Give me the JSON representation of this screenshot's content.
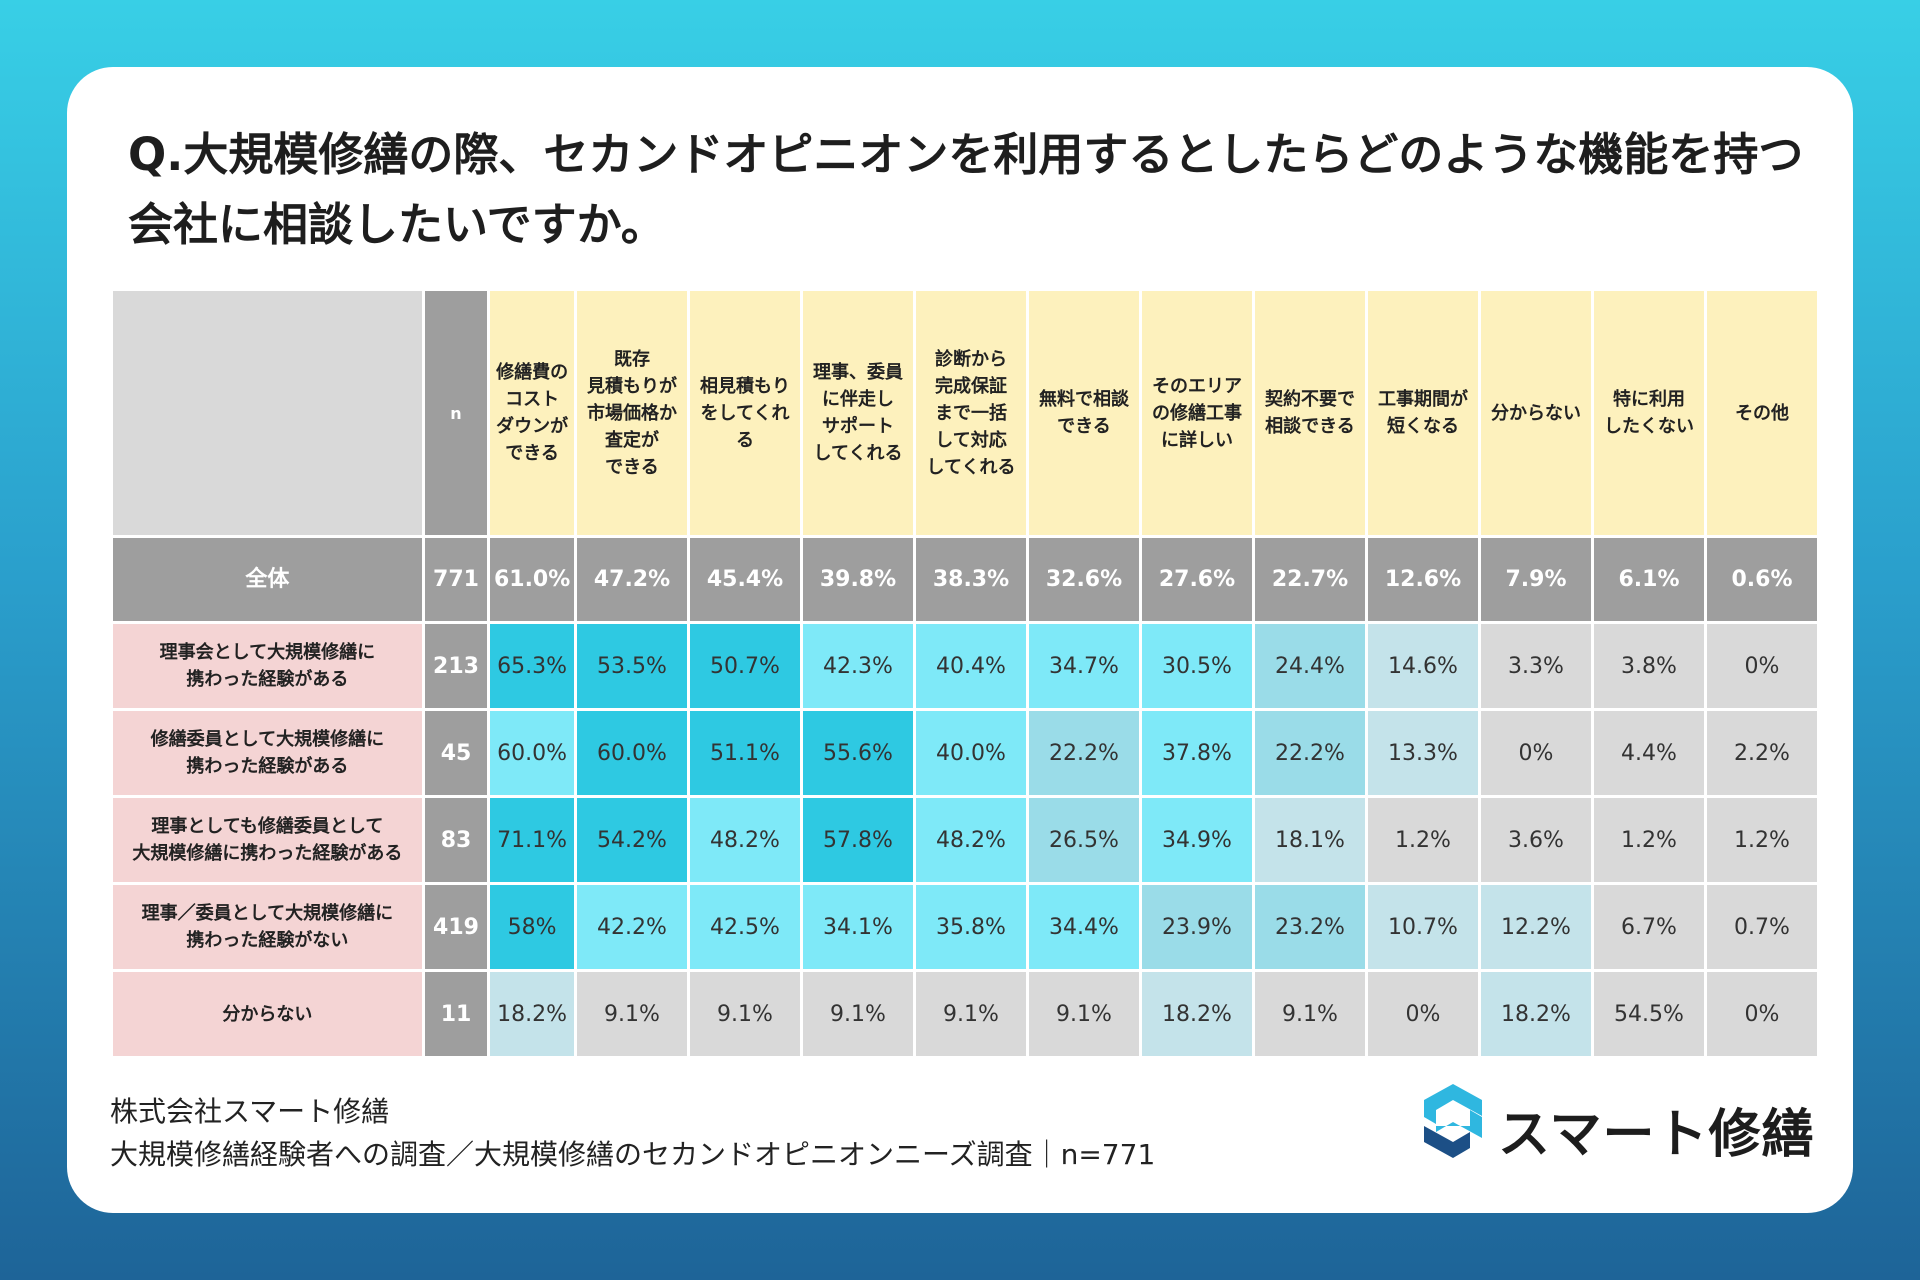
{
  "question": "Q.大規模修繕の際、セカンドオピニオンを利用するとしたらどのような機能を持つ会社に相談したいですか。",
  "header_n": "n",
  "colors": {
    "header_bg": "#fdf1bd",
    "grey": "#9e9e9e",
    "row_label_bg": "#f4d4d4"
  },
  "chart_data": {
    "type": "table",
    "title": "Q.大規模修繕の際、セカンドオピニオンを利用するとしたらどのような機能を持つ会社に相談したいですか。",
    "columns": [
      {
        "label": "修繕費の\nコスト\nダウンが\nできる"
      },
      {
        "label": "既存\n見積もりが\n市場価格か\n査定が\nできる"
      },
      {
        "label": "相見積もり\nをしてくれ\nる"
      },
      {
        "label": "理事、委員\nに伴走し\nサポート\nしてくれる"
      },
      {
        "label": "診断から\n完成保証\nまで一括\nして対応\nしてくれる"
      },
      {
        "label": "無料で相談\nできる"
      },
      {
        "label": "そのエリア\nの修繕工事\nに詳しい"
      },
      {
        "label": "契約不要で\n相談できる"
      },
      {
        "label": "工事期間が\n短くなる"
      },
      {
        "label": "分からない"
      },
      {
        "label": "特に利用\nしたくない"
      },
      {
        "label": "その他"
      }
    ],
    "total": {
      "label": "全体",
      "n": "771",
      "values": [
        "61.0%",
        "47.2%",
        "45.4%",
        "39.8%",
        "38.3%",
        "32.6%",
        "27.6%",
        "22.7%",
        "12.6%",
        "7.9%",
        "6.1%",
        "0.6%"
      ]
    },
    "rows": [
      {
        "label": "理事会として大規模修繕に\n携わった経験がある",
        "n": "213",
        "values": [
          "65.3%",
          "53.5%",
          "50.7%",
          "42.3%",
          "40.4%",
          "34.7%",
          "30.5%",
          "24.4%",
          "14.6%",
          "3.3%",
          "3.8%",
          "0%"
        ]
      },
      {
        "label": "修繕委員として大規模修繕に\n携わった経験がある",
        "n": "45",
        "values": [
          "60.0%",
          "60.0%",
          "51.1%",
          "55.6%",
          "40.0%",
          "22.2%",
          "37.8%",
          "22.2%",
          "13.3%",
          "0%",
          "4.4%",
          "2.2%"
        ]
      },
      {
        "label": "理事としても修繕委員として\n大規模修繕に携わった経験がある",
        "n": "83",
        "values": [
          "71.1%",
          "54.2%",
          "48.2%",
          "57.8%",
          "48.2%",
          "26.5%",
          "34.9%",
          "18.1%",
          "1.2%",
          "3.6%",
          "1.2%",
          "1.2%"
        ]
      },
      {
        "label": "理事／委員として大規模修繕に\n携わった経験がない",
        "n": "419",
        "values": [
          "58%",
          "42.2%",
          "42.5%",
          "34.1%",
          "35.8%",
          "34.4%",
          "23.9%",
          "23.2%",
          "10.7%",
          "12.2%",
          "6.7%",
          "0.7%"
        ]
      },
      {
        "label": "分からない",
        "n": "11",
        "values": [
          "18.2%",
          "9.1%",
          "9.1%",
          "9.1%",
          "9.1%",
          "9.1%",
          "18.2%",
          "9.1%",
          "0%",
          "18.2%",
          "54.5%",
          "0%"
        ]
      }
    ],
    "cell_colors": [
      [
        "#2ec9e2",
        "#2ec9e2",
        "#2ec9e2",
        "#7ee9f8",
        "#7ee9f8",
        "#7ee9f8",
        "#7ee9f8",
        "#9adce8",
        "#c4e3ea",
        "#d9d9d9",
        "#d9d9d9",
        "#d9d9d9"
      ],
      [
        "#7ee9f8",
        "#2ec9e2",
        "#2ec9e2",
        "#2ec9e2",
        "#7ee9f8",
        "#9adce8",
        "#7ee9f8",
        "#9adce8",
        "#c4e3ea",
        "#d9d9d9",
        "#d9d9d9",
        "#d9d9d9"
      ],
      [
        "#2ec9e2",
        "#2ec9e2",
        "#7ee9f8",
        "#2ec9e2",
        "#7ee9f8",
        "#9adce8",
        "#7ee9f8",
        "#c4e3ea",
        "#d9d9d9",
        "#d9d9d9",
        "#d9d9d9",
        "#d9d9d9"
      ],
      [
        "#2ec9e2",
        "#7ee9f8",
        "#7ee9f8",
        "#7ee9f8",
        "#7ee9f8",
        "#7ee9f8",
        "#9adce8",
        "#9adce8",
        "#c4e3ea",
        "#c4e3ea",
        "#d9d9d9",
        "#d9d9d9"
      ],
      [
        "#c4e3ea",
        "#d9d9d9",
        "#d9d9d9",
        "#d9d9d9",
        "#d9d9d9",
        "#d9d9d9",
        "#c4e3ea",
        "#d9d9d9",
        "#d9d9d9",
        "#c4e3ea",
        "#d9d9d9",
        "#d9d9d9"
      ]
    ]
  },
  "footer": {
    "company": "株式会社スマート修繕",
    "survey": "大規模修繕経験者への調査／大規模修繕のセカンドオピニオンニーズ調査｜n=771"
  },
  "logo": {
    "text": "スマート修繕",
    "icon": "s-logo-icon",
    "color_light": "#2fb7e0",
    "color_dark": "#1c4f86"
  }
}
